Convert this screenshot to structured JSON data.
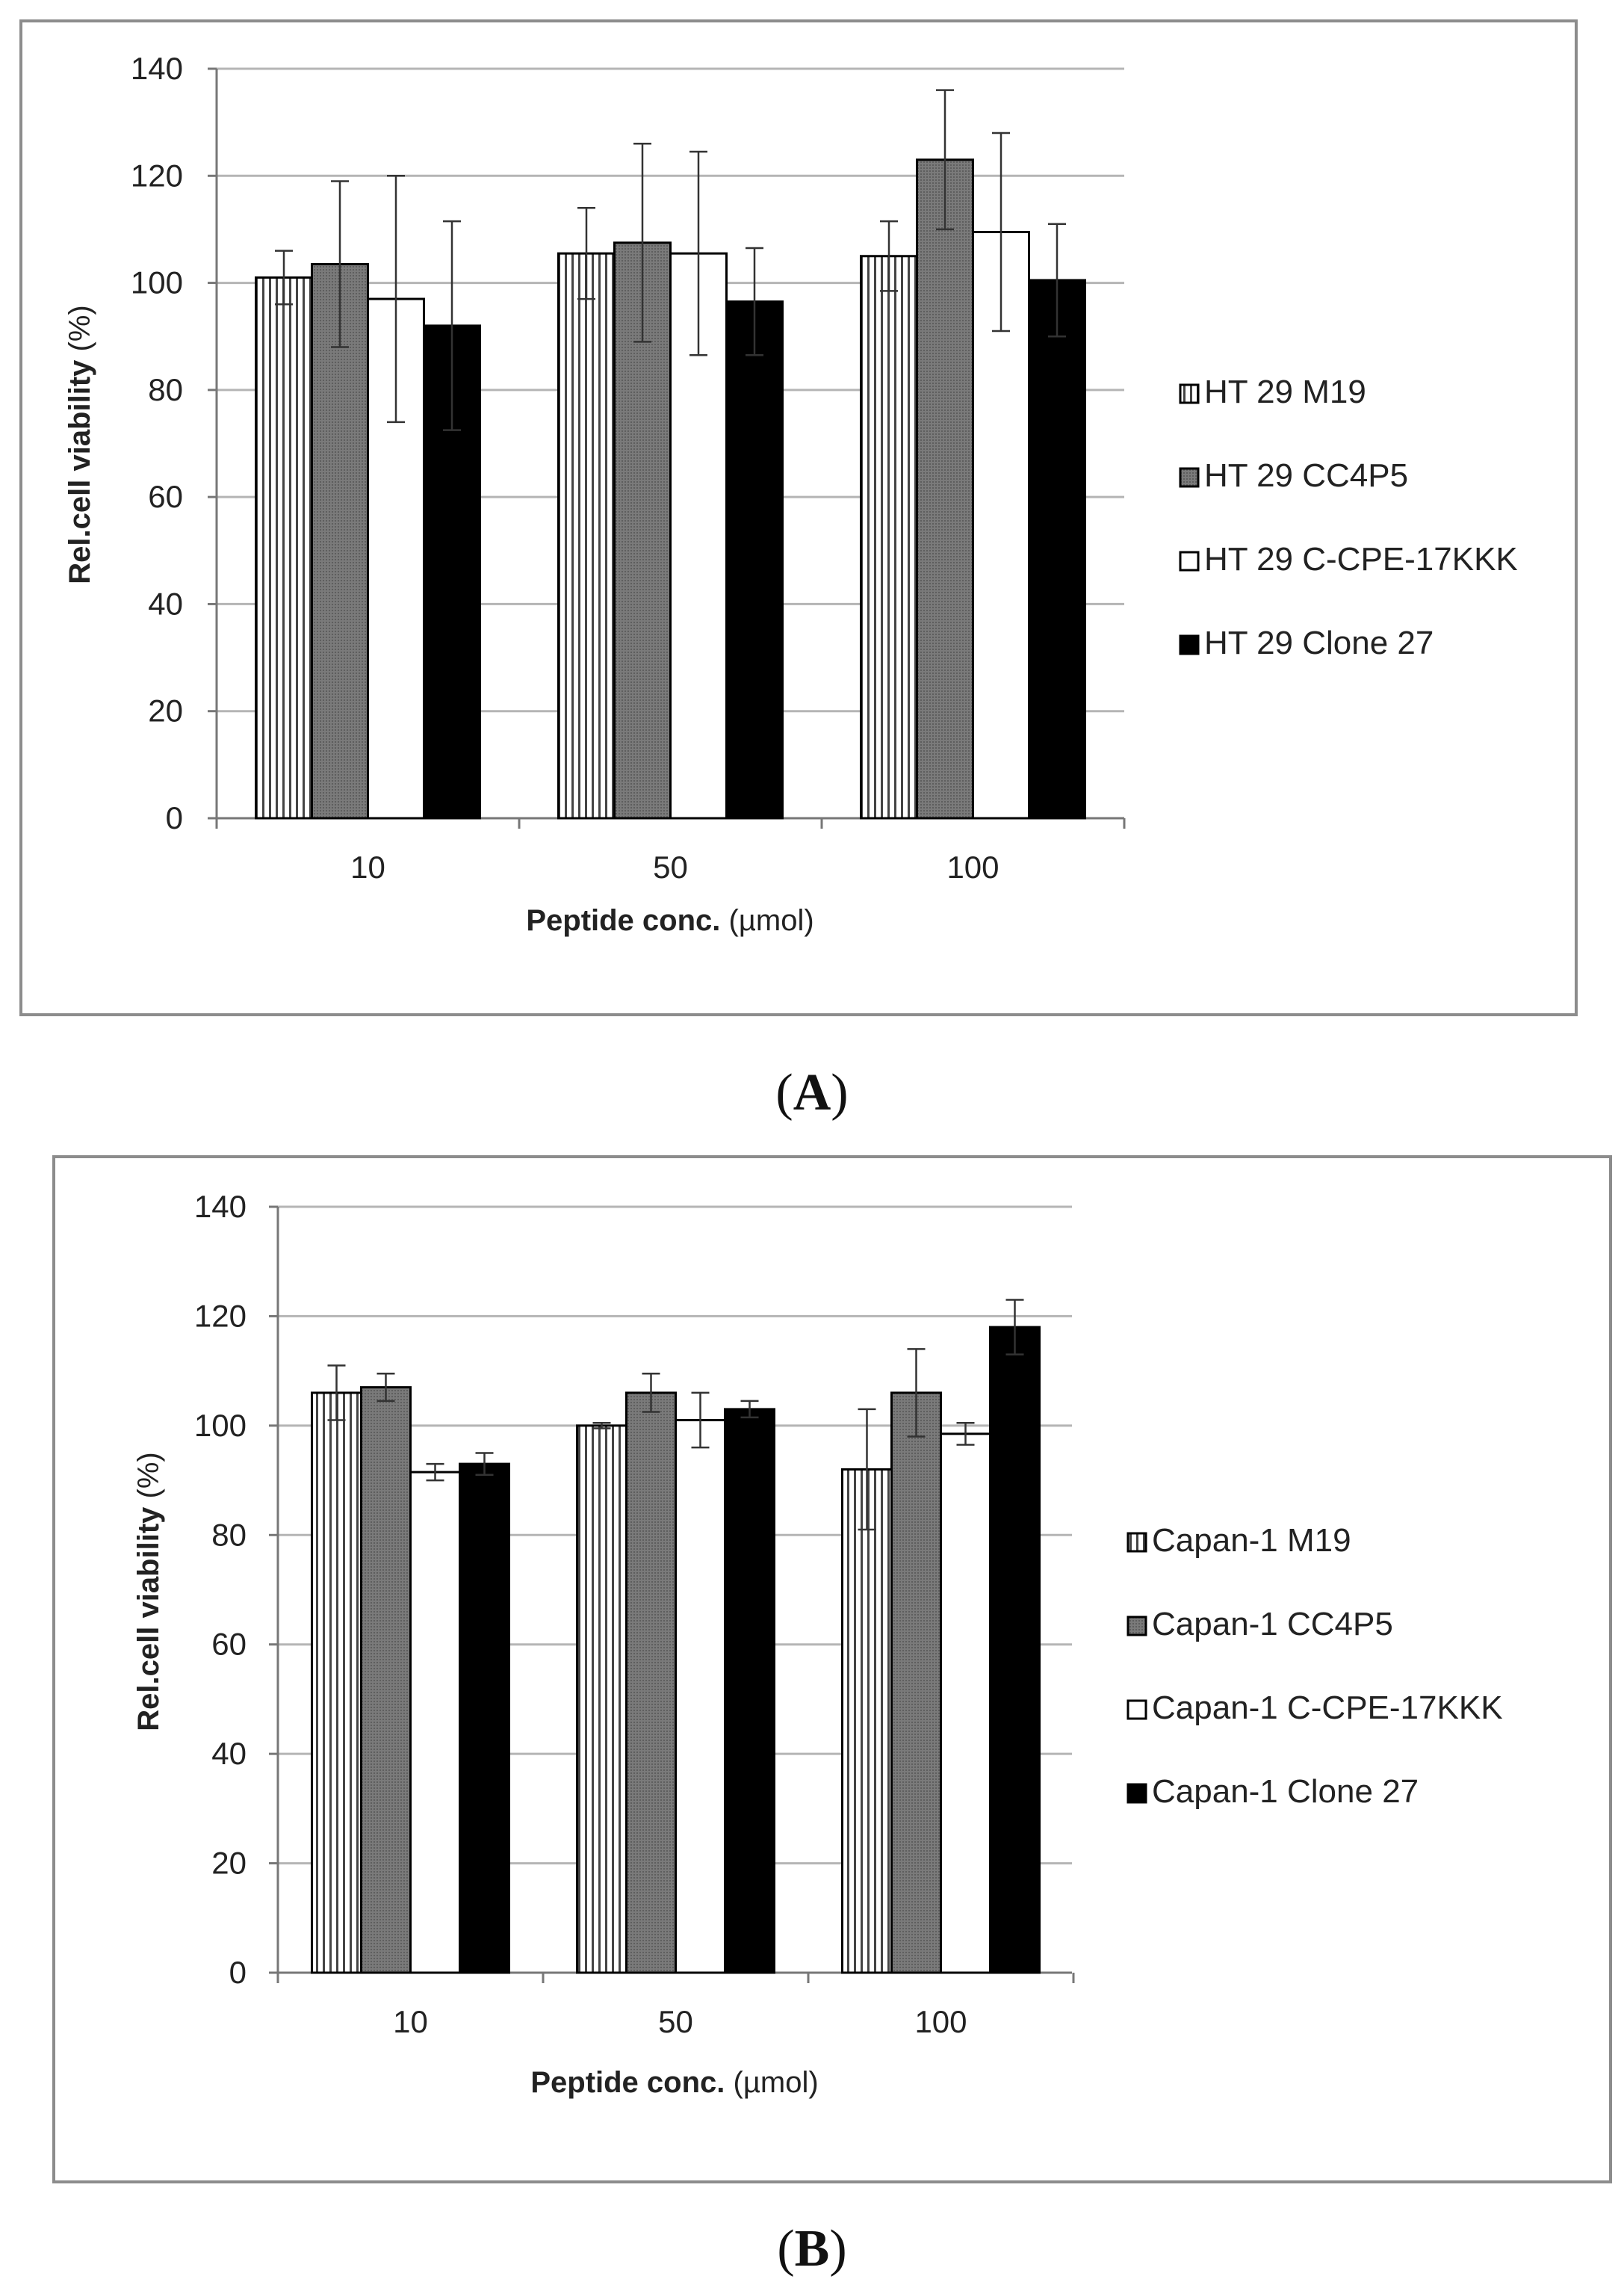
{
  "chart_data": [
    {
      "type": "bar",
      "panel_label": "A",
      "categories": [
        "10",
        "50",
        "100"
      ],
      "xlabel_main": "Peptide conc.",
      "xlabel_unit": " (µmol)",
      "ylabel_main": "Rel.cell viability",
      "ylabel_unit": " (%)",
      "ylim": [
        0,
        140
      ],
      "yticks": [
        "0",
        "20",
        "40",
        "60",
        "80",
        "100",
        "120",
        "140"
      ],
      "grid": true,
      "legend_position": "right",
      "series": [
        {
          "name": "HT 29 M19",
          "pattern": "vertical-stripes",
          "values": [
            101,
            105.5,
            105
          ],
          "errors": [
            5,
            8.5,
            6.5
          ]
        },
        {
          "name": "HT 29 CC4P5",
          "pattern": "gray",
          "values": [
            103.5,
            107.5,
            123
          ],
          "errors": [
            15.5,
            18.5,
            13
          ]
        },
        {
          "name": "HT 29 C-CPE-17KKK",
          "pattern": "white",
          "values": [
            97,
            105.5,
            109.5
          ],
          "errors": [
            23,
            19,
            18.5
          ]
        },
        {
          "name": "HT 29 Clone 27",
          "pattern": "black",
          "values": [
            92,
            96.5,
            100.5
          ],
          "errors": [
            19.5,
            10,
            10.5
          ]
        }
      ]
    },
    {
      "type": "bar",
      "panel_label": "B",
      "categories": [
        "10",
        "50",
        "100"
      ],
      "xlabel_main": "Peptide conc.",
      "xlabel_unit": " (µmol)",
      "ylabel_main": "Rel.cell viability",
      "ylabel_unit": " (%)",
      "ylim": [
        0,
        140
      ],
      "yticks": [
        "0",
        "20",
        "40",
        "60",
        "80",
        "100",
        "120",
        "140"
      ],
      "grid": true,
      "legend_position": "right",
      "series": [
        {
          "name": "Capan-1 M19",
          "pattern": "vertical-stripes",
          "values": [
            106,
            100,
            92
          ],
          "errors": [
            5,
            0.5,
            11
          ]
        },
        {
          "name": "Capan-1 CC4P5",
          "pattern": "gray",
          "values": [
            107,
            106,
            106
          ],
          "errors": [
            2.5,
            3.5,
            8
          ]
        },
        {
          "name": "Capan-1 C-CPE-17KKK",
          "pattern": "white",
          "values": [
            91.5,
            101,
            98.5
          ],
          "errors": [
            1.5,
            5,
            2
          ]
        },
        {
          "name": "Capan-1 Clone 27",
          "pattern": "black",
          "values": [
            93,
            103,
            118
          ],
          "errors": [
            2,
            1.5,
            5
          ]
        }
      ]
    }
  ]
}
